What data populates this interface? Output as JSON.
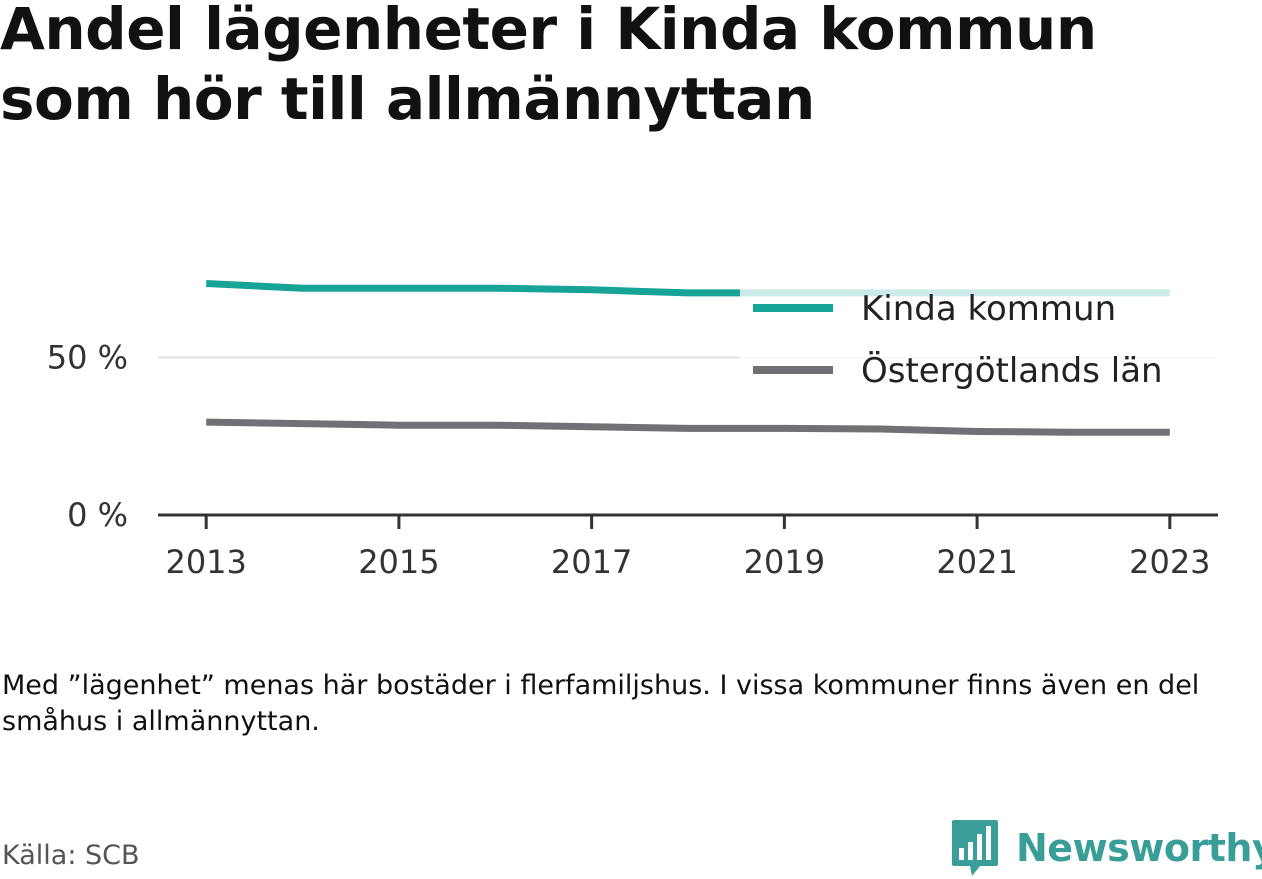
{
  "title": "Andel lägenheter i Kinda kommun som hör till allmännyttan",
  "note": "Med ”lägenhet” menas här bostäder i flerfamiljshus. I vissa kommuner finns även en del småhus i allmännyttan.",
  "source": "Källa: SCB",
  "brand": {
    "name": "Newsworthy"
  },
  "chart_data": {
    "type": "line",
    "title": "Andel lägenheter i Kinda kommun som hör till allmännyttan",
    "x": [
      2013,
      2014,
      2015,
      2016,
      2017,
      2018,
      2019,
      2020,
      2021,
      2022,
      2023
    ],
    "series": [
      {
        "name": "Kinda kommun",
        "color": "#17a398",
        "values": [
          73.5,
          72,
          72,
          72,
          71.5,
          70.5,
          70.5,
          70.5,
          70.5,
          70.5,
          70.5
        ]
      },
      {
        "name": "Östergötlands län",
        "color": "#707075",
        "values": [
          29.5,
          29,
          28.5,
          28.5,
          28,
          27.5,
          27.5,
          27.3,
          26.5,
          26.3,
          26.3
        ]
      }
    ],
    "xticks": [
      2013,
      2015,
      2017,
      2019,
      2021,
      2023
    ],
    "yticks": [
      0,
      50
    ],
    "ytick_labels": [
      "0 %",
      "50 %"
    ],
    "xlim": [
      2012.5,
      2023.5
    ],
    "ylim": [
      0,
      100
    ],
    "grid": true,
    "legend_position": "right"
  }
}
